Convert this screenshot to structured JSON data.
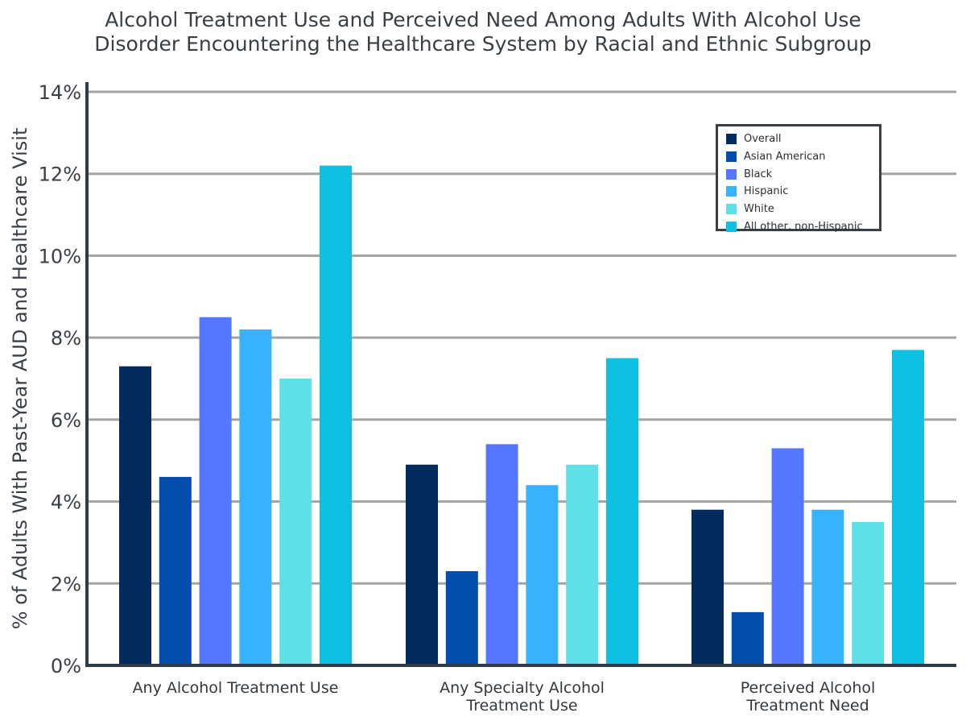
{
  "chart_data": {
    "type": "bar",
    "title_lines": [
      "Alcohol Treatment Use and Perceived Need Among Adults With Alcohol Use",
      "Disorder Encountering the Healthcare System by Racial and Ethnic Subgroup"
    ],
    "ylabel": "% of Adults With Past-Year AUD and Healthcare Visit",
    "xlabel": "",
    "ylim": [
      0,
      14
    ],
    "yticks": [
      0,
      2,
      4,
      6,
      8,
      10,
      12,
      14
    ],
    "ytick_labels": [
      "0%",
      "2%",
      "4%",
      "6%",
      "8%",
      "10%",
      "12%",
      "14%"
    ],
    "grid": true,
    "legend_position": "top-right",
    "categories": [
      [
        "Any Alcohol Treatment Use"
      ],
      [
        "Any Specialty Alcohol",
        "Treatment Use"
      ],
      [
        "Perceived Alcohol",
        "Treatment Need"
      ]
    ],
    "series": [
      {
        "name": "Overall",
        "color": "#032b5d",
        "values": [
          7.3,
          4.9,
          3.8
        ]
      },
      {
        "name": "Asian American",
        "color": "#034ead",
        "values": [
          4.6,
          2.3,
          1.3
        ]
      },
      {
        "name": "Black",
        "color": "#5577fd",
        "values": [
          8.5,
          5.4,
          5.3
        ]
      },
      {
        "name": "Hispanic",
        "color": "#38b2fd",
        "values": [
          8.2,
          4.4,
          3.8
        ]
      },
      {
        "name": "White",
        "color": "#5fe0e6",
        "values": [
          7.0,
          4.9,
          3.5
        ]
      },
      {
        "name": "All other, non-Hispanic",
        "color": "#0ec1e2",
        "values": [
          12.2,
          7.5,
          7.7
        ]
      }
    ]
  }
}
